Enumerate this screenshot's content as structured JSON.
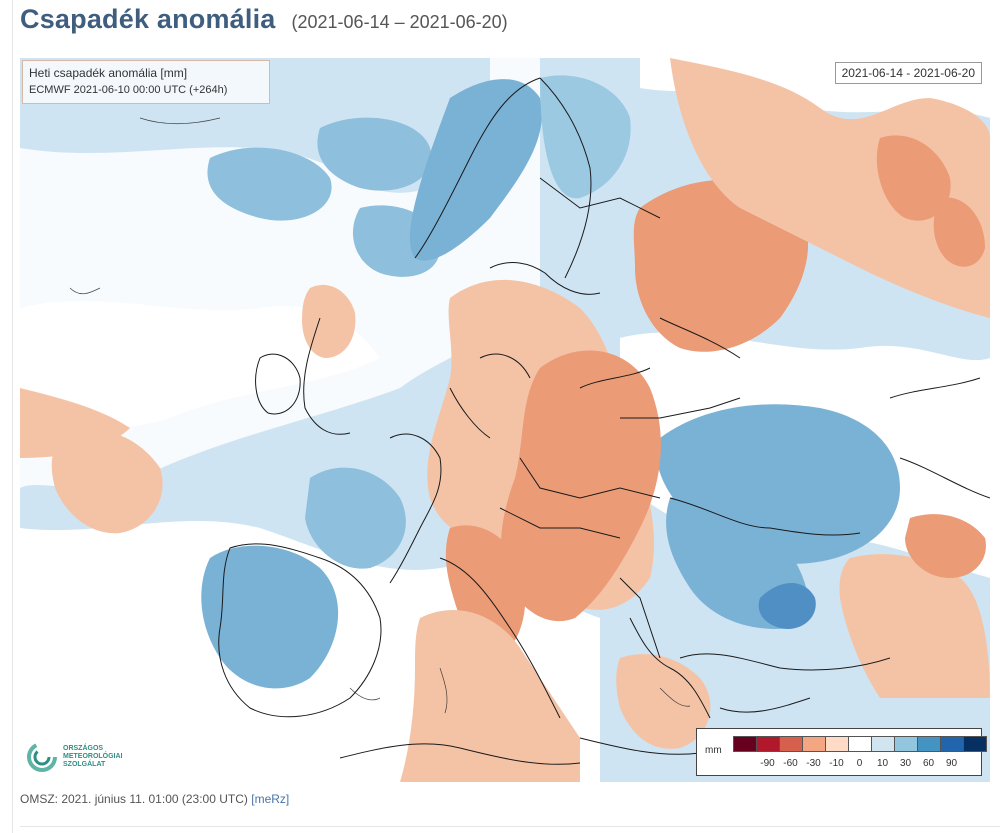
{
  "header": {
    "title": "Csapadék anomália",
    "date_range": "(2021-06-14 – 2021-06-20)"
  },
  "map": {
    "info_line1": "Heti csapadék anomália [mm]",
    "info_line2": "ECMWF 2021-06-10 00:00 UTC (+264h)",
    "period_label": "2021-06-14 - 2021-06-20",
    "logo_line1": "ORSZÁGOS",
    "logo_line2": "METEOROLÓGIAI",
    "logo_line3": "SZOLGÁLAT",
    "legend": {
      "unit": "mm",
      "colors": [
        "#67001f",
        "#b2182b",
        "#d6604d",
        "#f4a582",
        "#fddbc7",
        "#ffffff",
        "#d1e5f0",
        "#92c5de",
        "#4393c3",
        "#2166ac",
        "#053061"
      ],
      "labels": [
        "-90",
        "-60",
        "-30",
        "-10",
        "0",
        "10",
        "30",
        "60",
        "90"
      ]
    }
  },
  "footer": {
    "text": "OMSZ: 2021. június 11. 01:00 (23:00 UTC)",
    "tag": "[meRz]"
  }
}
